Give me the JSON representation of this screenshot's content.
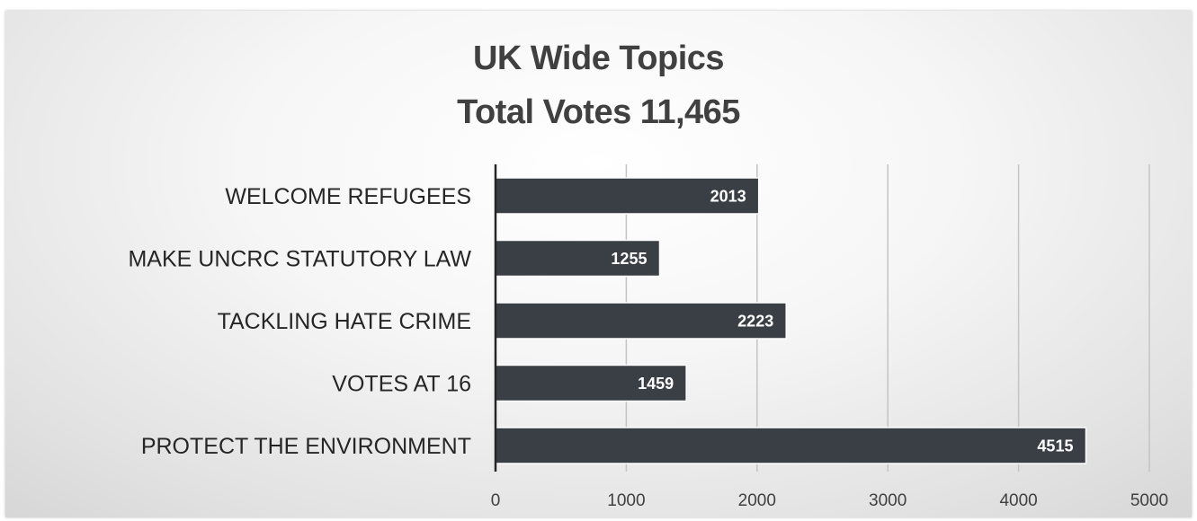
{
  "chart_data": {
    "type": "bar",
    "orientation": "horizontal",
    "title_lines": [
      "UK Wide Topics",
      "Total Votes 11,465"
    ],
    "categories": [
      "WELCOME REFUGEES",
      "MAKE UNCRC STATUTORY LAW",
      "TACKLING HATE CRIME",
      "VOTES AT 16",
      "PROTECT THE ENVIRONMENT"
    ],
    "values": [
      2013,
      1255,
      2223,
      1459,
      4515
    ],
    "xlim": [
      0,
      5000
    ],
    "xticks": [
      "0",
      "1000",
      "2000",
      "3000",
      "4000",
      "5000"
    ],
    "grid": "vertical",
    "bar_color": "#3a3e45",
    "data_labels": true
  }
}
